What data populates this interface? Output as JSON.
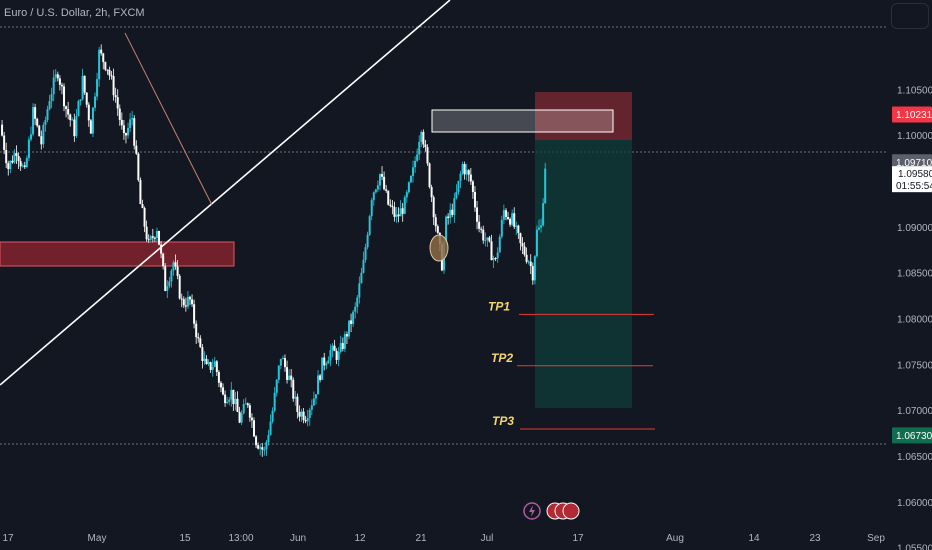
{
  "header": {
    "symbol_title": "Euro / U.S. Dollar, 2h, FXCM"
  },
  "chart_data": {
    "type": "line",
    "instrument": "EURUSD",
    "timeframe": "2h",
    "ylim": [
      1.0548,
      1.1148
    ],
    "y_ticks": [
      "1.10500",
      "1.10000",
      "1.09500",
      "1.09000",
      "1.08500",
      "1.08000",
      "1.07500",
      "1.07000",
      "1.06500",
      "1.06000",
      "1.05500"
    ],
    "x_ticks": [
      "17",
      "May",
      "15",
      "13:00",
      "Jun",
      "12",
      "21",
      "Jul",
      "17",
      "Aug",
      "14",
      "23",
      "Sep"
    ],
    "price_path": [
      [
        0,
        1.1012
      ],
      [
        2,
        1.0965
      ],
      [
        4,
        1.0985
      ],
      [
        6,
        1.0958
      ],
      [
        8,
        1.1025
      ],
      [
        10,
        1.0992
      ],
      [
        12,
        1.1042
      ],
      [
        14,
        1.107
      ],
      [
        16,
        1.103
      ],
      [
        18,
        1.1005
      ],
      [
        20,
        1.106
      ],
      [
        22,
        1.1008
      ],
      [
        24,
        1.109
      ],
      [
        26,
        1.1075
      ],
      [
        28,
        1.1042
      ],
      [
        30,
        1.0995
      ],
      [
        32,
        1.102
      ],
      [
        34,
        1.0925
      ],
      [
        36,
        1.088
      ],
      [
        38,
        1.09
      ],
      [
        40,
        1.0835
      ],
      [
        42,
        1.0862
      ],
      [
        44,
        1.0818
      ],
      [
        46,
        1.082
      ],
      [
        48,
        1.0775
      ],
      [
        50,
        1.0745
      ],
      [
        52,
        1.0752
      ],
      [
        54,
        1.0715
      ],
      [
        56,
        1.072
      ],
      [
        58,
        1.069
      ],
      [
        60,
        1.071
      ],
      [
        62,
        1.0668
      ],
      [
        64,
        1.0655
      ],
      [
        66,
        1.07
      ],
      [
        68,
        1.076
      ],
      [
        70,
        1.0735
      ],
      [
        72,
        1.07
      ],
      [
        74,
        1.0695
      ],
      [
        76,
        1.0715
      ],
      [
        78,
        1.075
      ],
      [
        80,
        1.0765
      ],
      [
        82,
        1.076
      ],
      [
        84,
        1.0785
      ],
      [
        86,
        1.081
      ],
      [
        88,
        1.086
      ],
      [
        90,
        1.0935
      ],
      [
        92,
        1.0958
      ],
      [
        94,
        1.0925
      ],
      [
        96,
        1.091
      ],
      [
        98,
        1.0925
      ],
      [
        100,
        1.096
      ],
      [
        102,
        1.1012
      ],
      [
        104,
        1.095
      ],
      [
        106,
        1.0888
      ],
      [
        107,
        1.086
      ],
      [
        108,
        1.0905
      ],
      [
        110,
        1.0925
      ],
      [
        112,
        1.0968
      ],
      [
        114,
        1.095
      ],
      [
        116,
        1.09
      ],
      [
        118,
        1.0882
      ],
      [
        120,
        1.0862
      ],
      [
        122,
        1.0918
      ],
      [
        124,
        1.0908
      ],
      [
        126,
        1.088
      ],
      [
        128,
        1.0865
      ],
      [
        129,
        1.085
      ],
      [
        130,
        1.0895
      ],
      [
        131,
        1.09
      ],
      [
        132,
        1.0968
      ]
    ],
    "price_path_x_unit": "bars",
    "x_domain_bars": [
      0,
      215
    ],
    "current_price": "1.09580",
    "countdown": "01:55:54",
    "price_badges": [
      {
        "label": "1.10231",
        "value": 1.10231,
        "color": "#f23645"
      },
      {
        "label": "1.09710",
        "value": 1.0971,
        "color": "#5d606b"
      },
      {
        "label": "1.06730",
        "value": 1.0673,
        "color": "#0f6e4f"
      }
    ],
    "annotations": {
      "take_profits": [
        {
          "label": "TP1",
          "price": 1.0805
        },
        {
          "label": "TP2",
          "price": 1.0749
        },
        {
          "label": "TP3",
          "price": 1.068
        }
      ],
      "short_position": {
        "entry": 1.0971,
        "stop": 1.10231,
        "target": 1.0673
      },
      "supply_zone": {
        "top": 1.1006,
        "bottom": 1.0981
      },
      "demand_zone": {
        "top": 1.0861,
        "bottom": 1.0837
      },
      "horizontal_levels": [
        1.0958,
        1.1142,
        1.0636
      ]
    }
  },
  "colors": {
    "background": "#131722",
    "candle_up": "#26c6da",
    "candle_down": "#ffffff",
    "zone_red": "#b22833",
    "profit_zone": "#0f3d3a",
    "loss_zone": "#6e2630",
    "tp_line": "#e53935"
  }
}
